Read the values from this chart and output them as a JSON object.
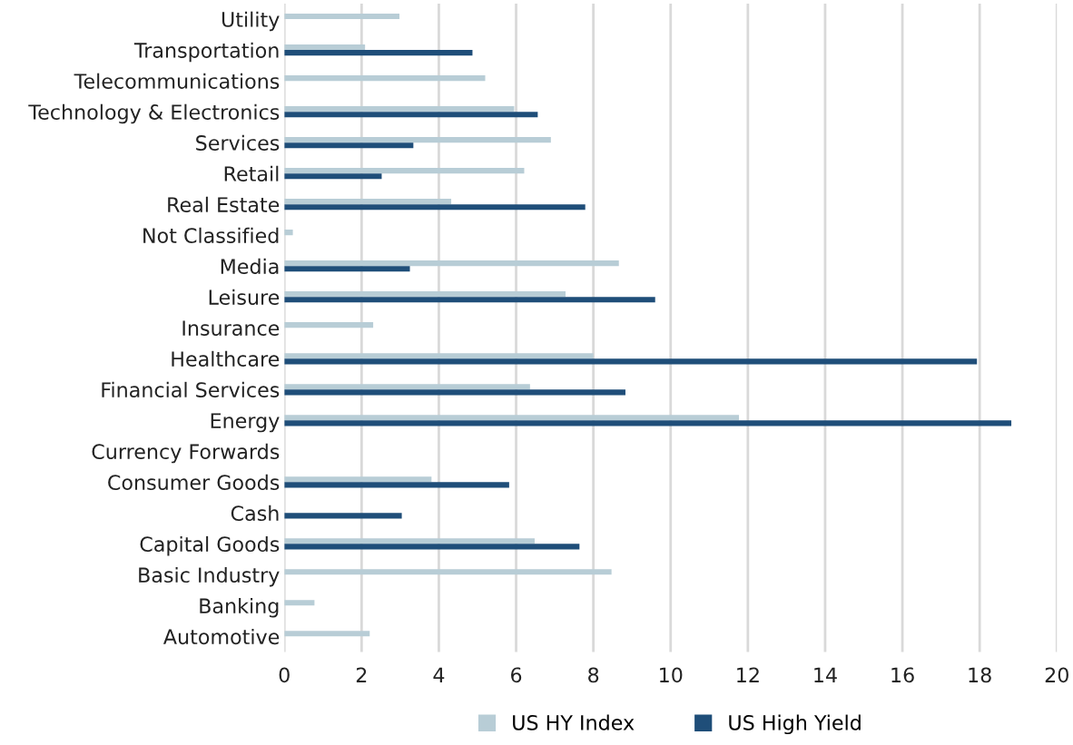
{
  "chart_data": {
    "type": "bar",
    "orientation": "horizontal",
    "categories": [
      "Utility",
      "Transportation",
      "Telecommunications",
      "Technology & Electronics",
      "Services",
      "Retail",
      "Real Estate",
      "Not Classified",
      "Media",
      "Leisure",
      "Insurance",
      "Healthcare",
      "Financial Services",
      "Energy",
      "Currency Forwards",
      "Consumer Goods",
      "Cash",
      "Capital Goods",
      "Basic Industry",
      "Banking",
      "Automotive"
    ],
    "series": [
      {
        "name": "US HY Index",
        "color": "#b8cdd6",
        "values": [
          2.98,
          2.09,
          5.2,
          5.95,
          6.9,
          6.21,
          4.32,
          0.22,
          8.66,
          7.28,
          2.3,
          8.0,
          6.36,
          11.77,
          null,
          3.81,
          null,
          6.48,
          8.47,
          0.78,
          2.21
        ]
      },
      {
        "name": "US High Yield",
        "color": "#1f4e79",
        "values": [
          null,
          4.87,
          null,
          6.56,
          3.34,
          2.52,
          7.79,
          null,
          3.25,
          9.6,
          null,
          17.93,
          8.83,
          18.82,
          null,
          5.82,
          3.04,
          7.64,
          null,
          null,
          null
        ]
      }
    ],
    "xlim": [
      0,
      20
    ],
    "xticks": [
      0,
      2,
      4,
      6,
      8,
      10,
      12,
      14,
      16,
      18,
      20
    ],
    "grid": "x",
    "legend": "bottom"
  }
}
